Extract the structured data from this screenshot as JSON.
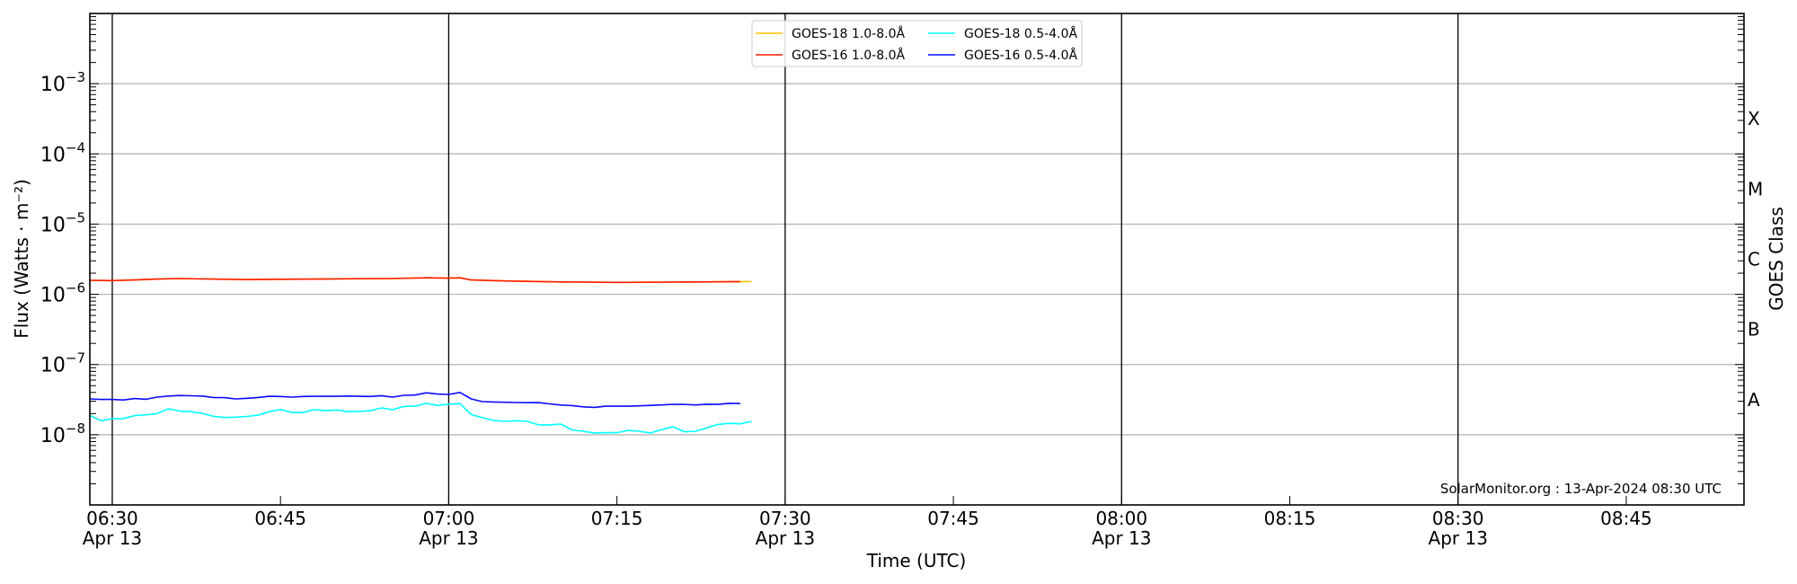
{
  "chart_data": {
    "type": "line",
    "xlabel": "Time (UTC)",
    "ylabel": "Flux (Watts · m⁻²)",
    "ylabel_right": "GOES Class",
    "yscale": "log",
    "ylim": [
      1e-09,
      0.01
    ],
    "xlim": [
      "06:28",
      "08:55:30"
    ],
    "grid": "horizontal at decades",
    "legend_position": "top-center",
    "y_ticks": [
      {
        "value": 0.001,
        "base": "10",
        "exp": "−3"
      },
      {
        "value": 0.0001,
        "base": "10",
        "exp": "−4"
      },
      {
        "value": 1e-05,
        "base": "10",
        "exp": "−5"
      },
      {
        "value": 1e-06,
        "base": "10",
        "exp": "−6"
      },
      {
        "value": 1e-07,
        "base": "10",
        "exp": "−7"
      },
      {
        "value": 1e-08,
        "base": "10",
        "exp": "−8"
      }
    ],
    "x_ticks": [
      {
        "time": "06:30",
        "label": "06:30",
        "date": "Apr 13"
      },
      {
        "time": "06:45",
        "label": "06:45",
        "date": ""
      },
      {
        "time": "07:00",
        "label": "07:00",
        "date": "Apr 13"
      },
      {
        "time": "07:15",
        "label": "07:15",
        "date": ""
      },
      {
        "time": "07:30",
        "label": "07:30",
        "date": "Apr 13"
      },
      {
        "time": "07:45",
        "label": "07:45",
        "date": ""
      },
      {
        "time": "08:00",
        "label": "08:00",
        "date": "Apr 13"
      },
      {
        "time": "08:15",
        "label": "08:15",
        "date": ""
      },
      {
        "time": "08:30",
        "label": "08:30",
        "date": "Apr 13"
      },
      {
        "time": "08:45",
        "label": "08:45",
        "date": ""
      }
    ],
    "vertical_lines": [
      "06:30",
      "07:00",
      "07:30",
      "08:00",
      "08:30"
    ],
    "goes_classes": [
      {
        "label": "X",
        "lower": 0.0001
      },
      {
        "label": "M",
        "lower": 1e-05
      },
      {
        "label": "C",
        "lower": 1e-06
      },
      {
        "label": "B",
        "lower": 1e-07
      },
      {
        "label": "A",
        "lower": 1e-08
      }
    ],
    "series": [
      {
        "name": "GOES-18 1.0-8.0Å",
        "color": "#ffc400",
        "x": [
          "06:28",
          "06:30",
          "06:32",
          "06:34",
          "06:36",
          "06:40",
          "06:42",
          "06:45",
          "06:50",
          "06:55",
          "06:58",
          "07:00",
          "07:01",
          "07:02",
          "07:05",
          "07:10",
          "07:15",
          "07:20",
          "07:26",
          "07:27"
        ],
        "y": [
          1.58e-06,
          1.57e-06,
          1.6e-06,
          1.65e-06,
          1.68e-06,
          1.64e-06,
          1.62e-06,
          1.64e-06,
          1.66e-06,
          1.68e-06,
          1.72e-06,
          1.7e-06,
          1.72e-06,
          1.6e-06,
          1.55e-06,
          1.5e-06,
          1.48e-06,
          1.49e-06,
          1.52e-06,
          1.52e-06
        ]
      },
      {
        "name": "GOES-16 1.0-8.0Å",
        "color": "#ff1a00",
        "x": [
          "06:28",
          "06:30",
          "06:32",
          "06:34",
          "06:36",
          "06:40",
          "06:42",
          "06:45",
          "06:50",
          "06:55",
          "06:58",
          "07:00",
          "07:01",
          "07:02",
          "07:05",
          "07:10",
          "07:15",
          "07:20",
          "07:26"
        ],
        "y": [
          1.58e-06,
          1.57e-06,
          1.6e-06,
          1.65e-06,
          1.68e-06,
          1.64e-06,
          1.62e-06,
          1.64e-06,
          1.66e-06,
          1.68e-06,
          1.72e-06,
          1.7e-06,
          1.72e-06,
          1.6e-06,
          1.55e-06,
          1.5e-06,
          1.48e-06,
          1.49e-06,
          1.52e-06
        ]
      },
      {
        "name": "GOES-18 0.5-4.0Å",
        "color": "#00ffff",
        "x": [
          "06:28",
          "06:29",
          "06:30",
          "06:31",
          "06:32",
          "06:33",
          "06:34",
          "06:35",
          "06:36",
          "06:37",
          "06:38",
          "06:39",
          "06:40",
          "06:41",
          "06:42",
          "06:43",
          "06:44",
          "06:45",
          "06:46",
          "06:47",
          "06:48",
          "06:49",
          "06:50",
          "06:51",
          "06:52",
          "06:53",
          "06:54",
          "06:55",
          "06:56",
          "06:57",
          "06:58",
          "06:59",
          "07:00",
          "07:01",
          "07:02",
          "07:03",
          "07:04",
          "07:05",
          "07:06",
          "07:07",
          "07:08",
          "07:09",
          "07:10",
          "07:11",
          "07:12",
          "07:13",
          "07:14",
          "07:15",
          "07:16",
          "07:17",
          "07:18",
          "07:19",
          "07:20",
          "07:21",
          "07:22",
          "07:23",
          "07:24",
          "07:25",
          "07:26",
          "07:27"
        ],
        "y": [
          1.88e-08,
          1.58e-08,
          1.69e-08,
          1.7e-08,
          1.87e-08,
          1.92e-08,
          2e-08,
          2.34e-08,
          2.18e-08,
          2.13e-08,
          2.02e-08,
          1.83e-08,
          1.76e-08,
          1.78e-08,
          1.82e-08,
          1.9e-08,
          2.13e-08,
          2.3e-08,
          2.07e-08,
          2.07e-08,
          2.28e-08,
          2.2e-08,
          2.25e-08,
          2.13e-08,
          2.15e-08,
          2.2e-08,
          2.41e-08,
          2.28e-08,
          2.53e-08,
          2.55e-08,
          2.8e-08,
          2.62e-08,
          2.72e-08,
          2.78e-08,
          1.94e-08,
          1.75e-08,
          1.6e-08,
          1.55e-08,
          1.58e-08,
          1.55e-08,
          1.38e-08,
          1.38e-08,
          1.42e-08,
          1.17e-08,
          1.12e-08,
          1.06e-08,
          1.07e-08,
          1.07e-08,
          1.15e-08,
          1.12e-08,
          1.06e-08,
          1.18e-08,
          1.3e-08,
          1.1e-08,
          1.12e-08,
          1.25e-08,
          1.4e-08,
          1.45e-08,
          1.43e-08,
          1.55e-08
        ]
      },
      {
        "name": "GOES-16 0.5-4.0Å",
        "color": "#0a0aff",
        "x": [
          "06:28",
          "06:29",
          "06:30",
          "06:31",
          "06:32",
          "06:33",
          "06:34",
          "06:35",
          "06:36",
          "06:37",
          "06:38",
          "06:39",
          "06:40",
          "06:41",
          "06:42",
          "06:43",
          "06:44",
          "06:45",
          "06:46",
          "06:47",
          "06:48",
          "06:49",
          "06:50",
          "06:51",
          "06:52",
          "06:53",
          "06:54",
          "06:55",
          "06:56",
          "06:57",
          "06:58",
          "06:59",
          "07:00",
          "07:01",
          "07:02",
          "07:03",
          "07:04",
          "07:05",
          "07:06",
          "07:07",
          "07:08",
          "07:09",
          "07:10",
          "07:11",
          "07:12",
          "07:13",
          "07:14",
          "07:15",
          "07:16",
          "07:17",
          "07:18",
          "07:19",
          "07:20",
          "07:21",
          "07:22",
          "07:23",
          "07:24",
          "07:25",
          "07:26"
        ],
        "y": [
          3.24e-08,
          3.18e-08,
          3.18e-08,
          3.12e-08,
          3.27e-08,
          3.2e-08,
          3.43e-08,
          3.56e-08,
          3.62e-08,
          3.59e-08,
          3.56e-08,
          3.39e-08,
          3.37e-08,
          3.24e-08,
          3.3e-08,
          3.39e-08,
          3.53e-08,
          3.5e-08,
          3.43e-08,
          3.5e-08,
          3.53e-08,
          3.53e-08,
          3.53e-08,
          3.56e-08,
          3.53e-08,
          3.5e-08,
          3.6e-08,
          3.43e-08,
          3.64e-08,
          3.67e-08,
          3.95e-08,
          3.8e-08,
          3.75e-08,
          4e-08,
          3.24e-08,
          2.96e-08,
          2.93e-08,
          2.9e-08,
          2.88e-08,
          2.86e-08,
          2.87e-08,
          2.75e-08,
          2.65e-08,
          2.6e-08,
          2.5e-08,
          2.45e-08,
          2.55e-08,
          2.55e-08,
          2.55e-08,
          2.58e-08,
          2.62e-08,
          2.66e-08,
          2.71e-08,
          2.7e-08,
          2.66e-08,
          2.72e-08,
          2.7e-08,
          2.8e-08,
          2.78e-08
        ]
      }
    ],
    "annotation": "SolarMonitor.org : 13-Apr-2024 08:30 UTC"
  }
}
